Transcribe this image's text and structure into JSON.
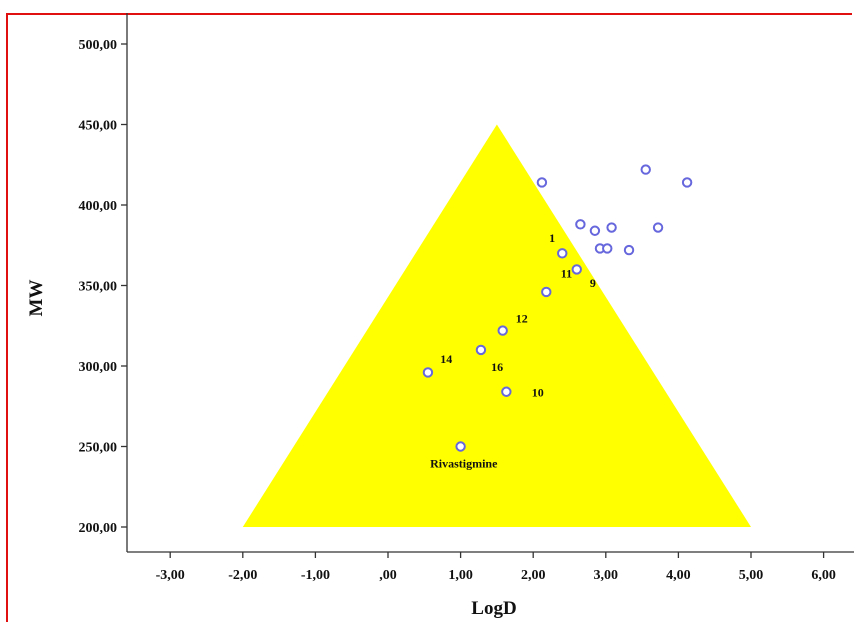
{
  "chart_data": {
    "type": "scatter",
    "xlabel": "LogD",
    "ylabel": "MW",
    "xlim": [
      -3.5,
      6.4
    ],
    "ylim": [
      190,
      510
    ],
    "x_ticks": [
      "-3,00",
      "-2,00",
      "-1,00",
      ",00",
      "1,00",
      "2,00",
      "3,00",
      "4,00",
      "5,00",
      "6,00"
    ],
    "x_tick_values": [
      -3,
      -2,
      -1,
      0,
      1,
      2,
      3,
      4,
      5,
      6
    ],
    "y_ticks": [
      "200,00",
      "250,00",
      "300,00",
      "350,00",
      "400,00",
      "450,00",
      "500,00"
    ],
    "y_tick_values": [
      200,
      250,
      300,
      350,
      400,
      450,
      500
    ],
    "region": {
      "shape": "triangle",
      "color": "#ffff00",
      "vertices": [
        [
          1.5,
          450
        ],
        [
          -2.0,
          200
        ],
        [
          5.0,
          200
        ]
      ]
    },
    "marker_color": "#6666dd",
    "points": [
      {
        "x": 2.12,
        "y": 414
      },
      {
        "x": 3.55,
        "y": 422
      },
      {
        "x": 4.12,
        "y": 414
      },
      {
        "x": 2.65,
        "y": 388
      },
      {
        "x": 2.85,
        "y": 384
      },
      {
        "x": 3.08,
        "y": 386
      },
      {
        "x": 3.72,
        "y": 386
      },
      {
        "x": 2.92,
        "y": 373
      },
      {
        "x": 3.02,
        "y": 373
      },
      {
        "x": 3.32,
        "y": 372
      },
      {
        "x": 2.4,
        "y": 370
      },
      {
        "x": 2.6,
        "y": 360
      },
      {
        "x": 2.18,
        "y": 346
      },
      {
        "x": 1.58,
        "y": 322
      },
      {
        "x": 1.28,
        "y": 310
      },
      {
        "x": 0.55,
        "y": 296
      },
      {
        "x": 1.63,
        "y": 284
      },
      {
        "x": 1.0,
        "y": 250
      }
    ],
    "annotations": [
      {
        "text": "1",
        "x": 2.22,
        "y": 377
      },
      {
        "text": "11",
        "x": 2.38,
        "y": 355
      },
      {
        "text": "9",
        "x": 2.78,
        "y": 349
      },
      {
        "text": "12",
        "x": 1.76,
        "y": 327
      },
      {
        "text": "14",
        "x": 0.72,
        "y": 302
      },
      {
        "text": "16",
        "x": 1.42,
        "y": 297
      },
      {
        "text": "10",
        "x": 1.98,
        "y": 281
      },
      {
        "text": "Rivastigmine",
        "x": 0.58,
        "y": 237
      }
    ]
  }
}
